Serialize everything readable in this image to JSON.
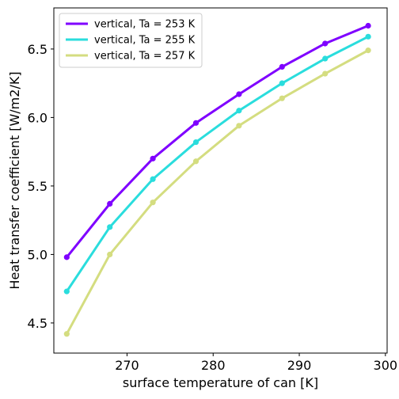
{
  "chart_data": {
    "type": "line",
    "title": "",
    "xlabel": "surface temperature of can [K]",
    "ylabel": "Heat transfer coefficient [W/m2/K]",
    "xlim": [
      261.5,
      300.2
    ],
    "ylim": [
      4.28,
      6.8
    ],
    "xticks": [
      270,
      280,
      290,
      300
    ],
    "yticks": [
      4.5,
      5.0,
      5.5,
      6.0,
      6.5
    ],
    "xtick_labels": [
      "270",
      "280",
      "290",
      "300"
    ],
    "ytick_labels": [
      "4.5",
      "5.0",
      "5.5",
      "6.0",
      "6.5"
    ],
    "grid": false,
    "legend_position": "top-left",
    "x": [
      263,
      268,
      273,
      278,
      283,
      288,
      293,
      298
    ],
    "series": [
      {
        "name": "vertical, Ta = 253 K",
        "color": "#7f00ff",
        "values": [
          4.98,
          5.37,
          5.7,
          5.96,
          6.17,
          6.37,
          6.54,
          6.67
        ]
      },
      {
        "name": "vertical, Ta = 255 K",
        "color": "#2adddd",
        "values": [
          4.73,
          5.2,
          5.55,
          5.82,
          6.05,
          6.25,
          6.43,
          6.59
        ]
      },
      {
        "name": "vertical, Ta = 257 K",
        "color": "#d4dd80",
        "values": [
          4.42,
          5.0,
          5.38,
          5.68,
          5.94,
          6.14,
          6.32,
          6.49
        ]
      }
    ]
  }
}
